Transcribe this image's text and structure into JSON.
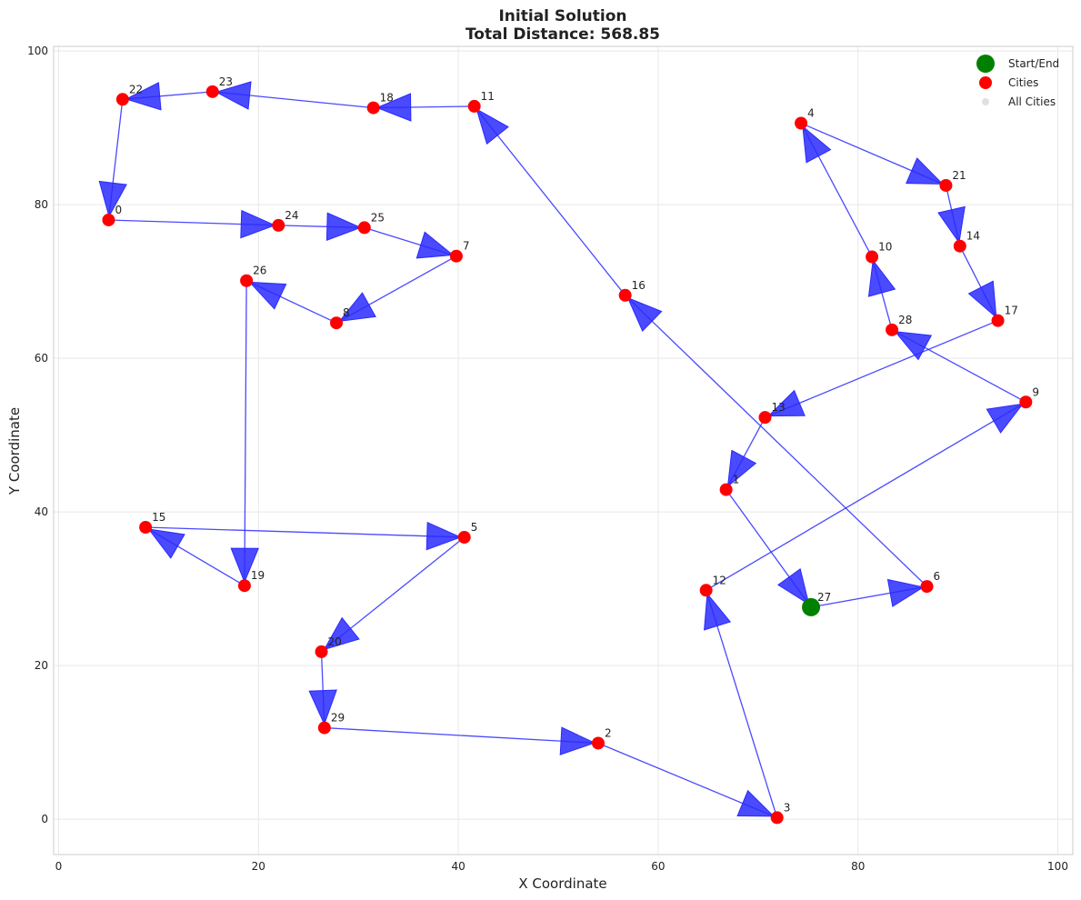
{
  "chart_data": {
    "type": "scatter",
    "title": "Initial Solution",
    "subtitle": "Total Distance: 568.85",
    "xlabel": "X Coordinate",
    "ylabel": "Y Coordinate",
    "xlim": [
      -0.5,
      101.5
    ],
    "ylim": [
      -4.6,
      100.6
    ],
    "xticks": [
      0,
      20,
      40,
      60,
      80,
      100
    ],
    "yticks": [
      0,
      20,
      40,
      60,
      80,
      100
    ],
    "grid": true,
    "legend_position": "top-right",
    "legend": [
      {
        "label": "Start/End",
        "marker": "start"
      },
      {
        "label": "Cities",
        "marker": "city"
      },
      {
        "label": "All Cities",
        "marker": "all"
      }
    ],
    "colors": {
      "route": "#2a2aff",
      "city": "#ff0000",
      "start": "#008000",
      "all_cities": "#cccccc",
      "grid": "#e8e8e8",
      "frame": "#cccccc"
    },
    "cities": [
      {
        "id": 0,
        "x": 5.0,
        "y": 78.0
      },
      {
        "id": 1,
        "x": 66.8,
        "y": 42.9
      },
      {
        "id": 2,
        "x": 54.0,
        "y": 9.9
      },
      {
        "id": 3,
        "x": 71.9,
        "y": 0.2
      },
      {
        "id": 4,
        "x": 74.3,
        "y": 90.6
      },
      {
        "id": 5,
        "x": 40.6,
        "y": 36.7
      },
      {
        "id": 6,
        "x": 86.9,
        "y": 30.3
      },
      {
        "id": 7,
        "x": 39.8,
        "y": 73.3
      },
      {
        "id": 8,
        "x": 27.8,
        "y": 64.6
      },
      {
        "id": 9,
        "x": 96.8,
        "y": 54.3
      },
      {
        "id": 10,
        "x": 81.4,
        "y": 73.2
      },
      {
        "id": 11,
        "x": 41.6,
        "y": 92.8
      },
      {
        "id": 12,
        "x": 64.8,
        "y": 29.8
      },
      {
        "id": 13,
        "x": 70.7,
        "y": 52.3
      },
      {
        "id": 14,
        "x": 90.2,
        "y": 74.6
      },
      {
        "id": 15,
        "x": 8.7,
        "y": 38.0
      },
      {
        "id": 16,
        "x": 56.7,
        "y": 68.2
      },
      {
        "id": 17,
        "x": 94.0,
        "y": 64.9
      },
      {
        "id": 18,
        "x": 31.5,
        "y": 92.6
      },
      {
        "id": 19,
        "x": 18.6,
        "y": 30.4
      },
      {
        "id": 20,
        "x": 26.3,
        "y": 21.8
      },
      {
        "id": 21,
        "x": 88.8,
        "y": 82.5
      },
      {
        "id": 22,
        "x": 6.4,
        "y": 93.7
      },
      {
        "id": 23,
        "x": 15.4,
        "y": 94.7
      },
      {
        "id": 24,
        "x": 22.0,
        "y": 77.3
      },
      {
        "id": 25,
        "x": 30.6,
        "y": 77.0
      },
      {
        "id": 26,
        "x": 18.8,
        "y": 70.1
      },
      {
        "id": 27,
        "x": 75.3,
        "y": 27.6
      },
      {
        "id": 28,
        "x": 83.4,
        "y": 63.7
      },
      {
        "id": 29,
        "x": 26.6,
        "y": 11.9
      }
    ],
    "route": [
      27,
      6,
      16,
      11,
      18,
      23,
      22,
      0,
      24,
      25,
      7,
      8,
      26,
      19,
      15,
      5,
      20,
      29,
      2,
      3,
      12,
      9,
      28,
      10,
      4,
      21,
      14,
      17,
      13,
      1,
      27
    ],
    "start": 27
  }
}
